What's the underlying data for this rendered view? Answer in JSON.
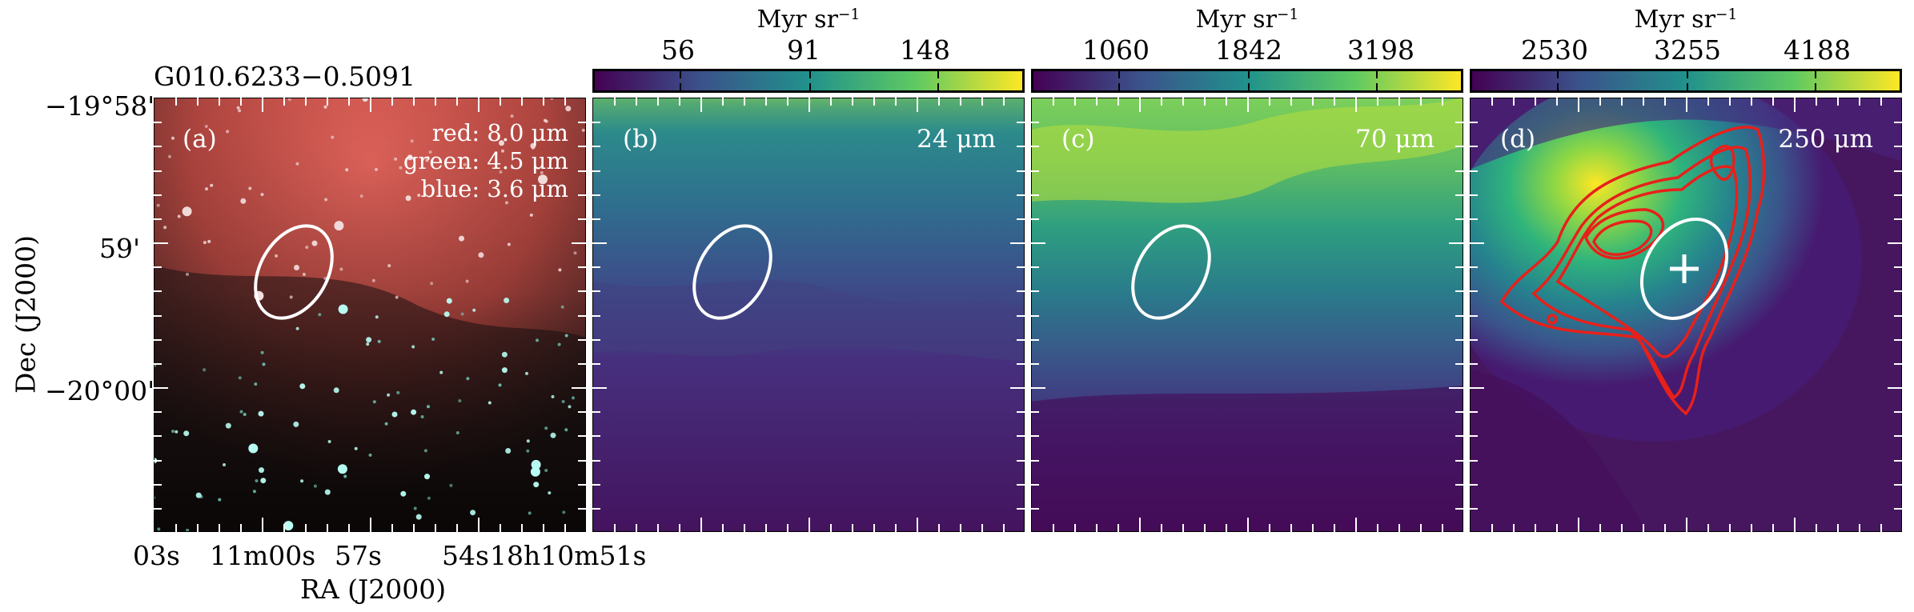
{
  "source_name": "G010.6233−0.5091",
  "axes": {
    "xlabel": "RA (J2000)",
    "ylabel": "Dec (J2000)",
    "x_ticks": [
      "03s",
      "11m00s",
      "57s",
      "54s",
      "18h10m51s"
    ],
    "y_ticks": [
      "−19°58'",
      "59'",
      "−20°00'"
    ]
  },
  "panels": [
    {
      "letter": "(a)",
      "legend": [
        "red: 8.0 μm",
        "green: 4.5 μm",
        "blue: 3.6 μm"
      ],
      "description": "three-color composite"
    },
    {
      "letter": "(b)",
      "band": "24 μm",
      "colorbar": {
        "unit": "Myr sr",
        "unit_exp": "−1",
        "ticks": [
          "56",
          "91",
          "148"
        ]
      }
    },
    {
      "letter": "(c)",
      "band": "70 μm",
      "colorbar": {
        "unit": "Myr sr",
        "unit_exp": "−1",
        "ticks": [
          "1060",
          "1842",
          "3198"
        ]
      }
    },
    {
      "letter": "(d)",
      "band": "250 μm",
      "colorbar": {
        "unit": "Myr sr",
        "unit_exp": "−1",
        "ticks": [
          "2530",
          "3255",
          "4188"
        ]
      }
    }
  ],
  "colors": {
    "viridis": [
      "#440154",
      "#3b528b",
      "#21918c",
      "#5ec962",
      "#fde725"
    ],
    "contour": "#e8201a",
    "ellipse": "#ffffff"
  }
}
